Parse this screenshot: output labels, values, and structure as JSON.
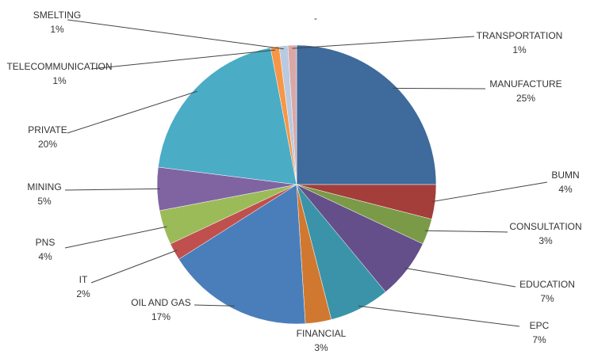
{
  "chart_data": {
    "type": "pie",
    "title": "-",
    "categories": [
      "MANUFACTURE",
      "BUMN",
      "CONSULTATION",
      "EDUCATION",
      "EPC",
      "FINANCIAL",
      "OIL AND GAS",
      "IT",
      "PNS",
      "MINING",
      "PRIVATE",
      "TELECOMMUNICATION",
      "SMELTING",
      "TRANSPORTATION"
    ],
    "values": [
      25,
      4,
      3,
      7,
      7,
      3,
      17,
      2,
      4,
      5,
      20,
      1,
      1,
      1
    ],
    "value_labels": [
      "25%",
      "4%",
      "3%",
      "7%",
      "7%",
      "3%",
      "17%",
      "2%",
      "4%",
      "5%",
      "20%",
      "1%",
      "1%",
      "1%"
    ],
    "colors": [
      "#3e6a9c",
      "#a33e3b",
      "#7a9a48",
      "#654f8a",
      "#3a93a8",
      "#d0782f",
      "#4a7ebb",
      "#c0504d",
      "#9bbb59",
      "#8064a2",
      "#4bacc6",
      "#f79646",
      "#b9c9e0",
      "#d8a8a8"
    ]
  }
}
